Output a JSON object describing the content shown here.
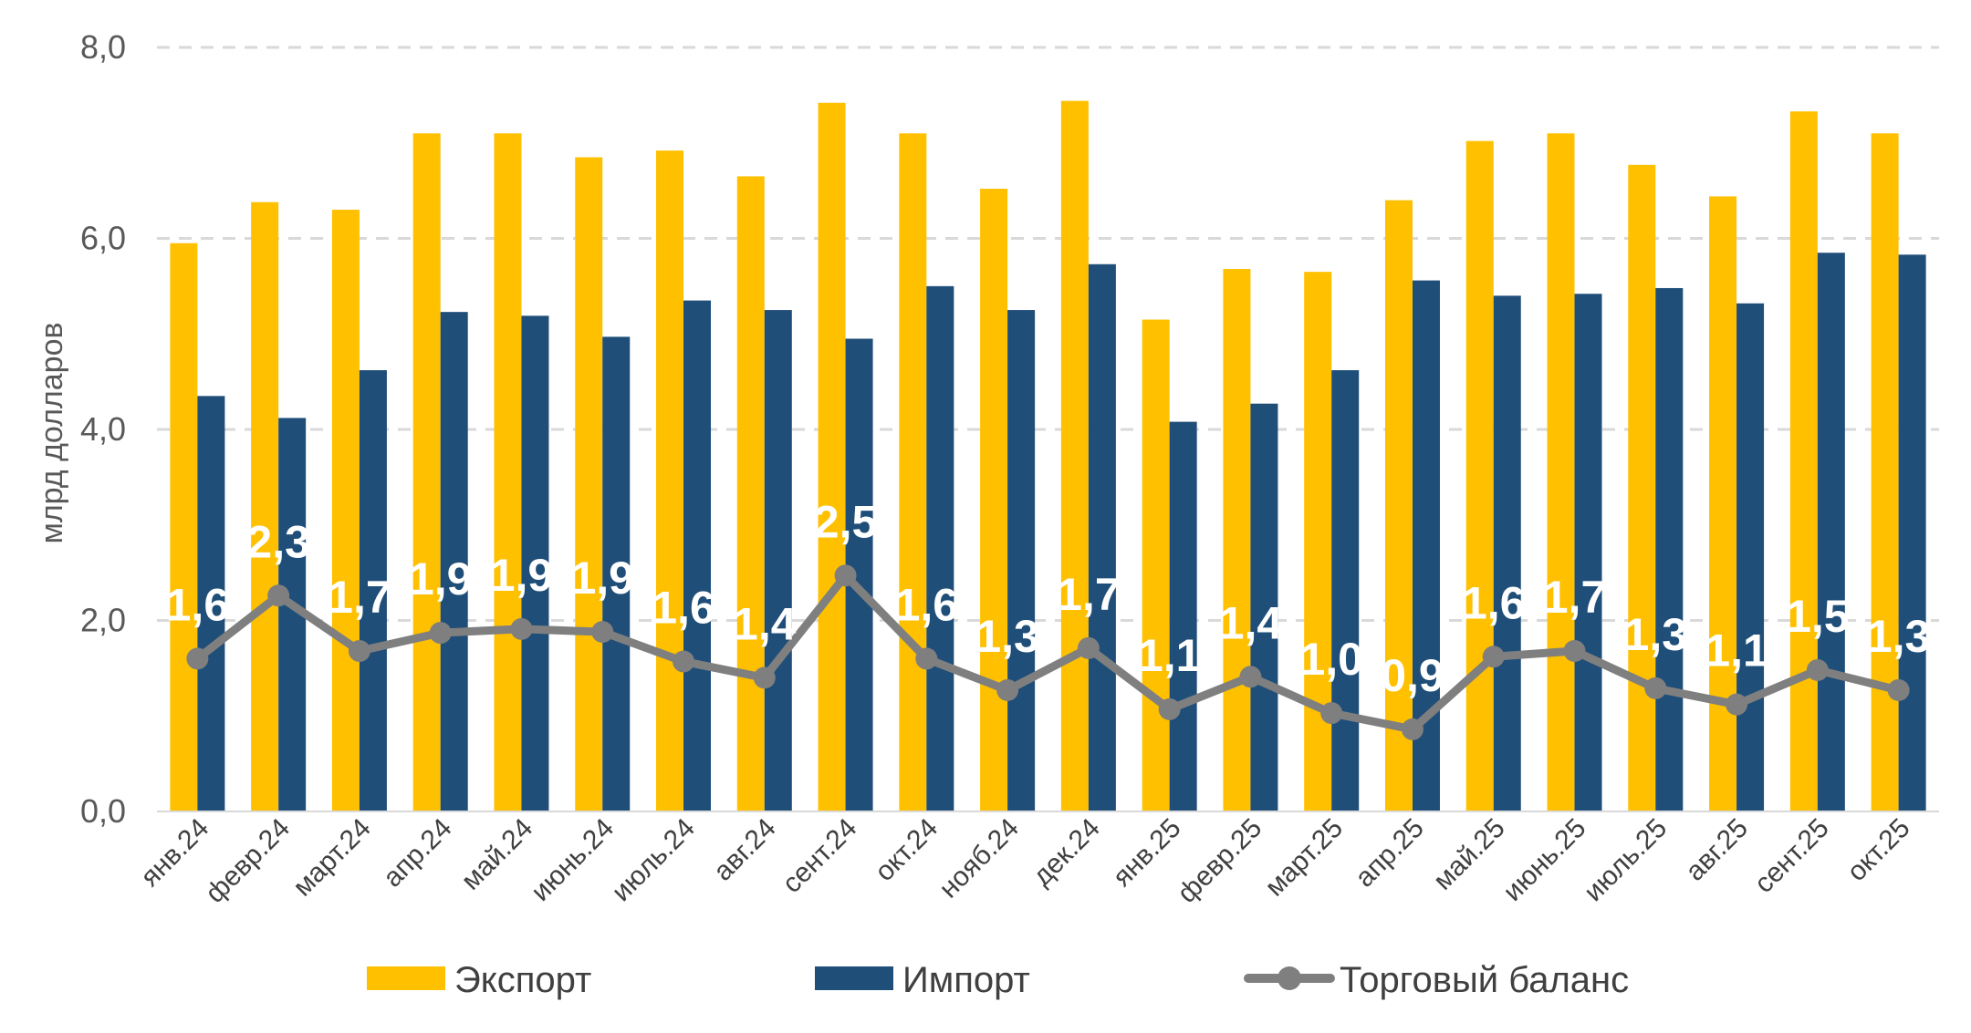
{
  "chart_data": {
    "type": "bar",
    "title": "",
    "xlabel": "",
    "ylabel": "млрд долларов",
    "ylim": [
      0,
      8
    ],
    "y_ticks": [
      "0,0",
      "2,0",
      "4,0",
      "6,0",
      "8,0"
    ],
    "grid": true,
    "legend_position": "bottom",
    "categories": [
      "янв.24",
      "февр.24",
      "март.24",
      "апр.24",
      "май.24",
      "июнь.24",
      "июль.24",
      "авг.24",
      "сент.24",
      "окт.24",
      "нояб.24",
      "дек.24",
      "янв.25",
      "февр.25",
      "март.25",
      "апр.25",
      "май.25",
      "июнь.25",
      "июль.25",
      "авг.25",
      "сент.25",
      "окт.25"
    ],
    "series": [
      {
        "name": "Экспорт",
        "type": "bar",
        "color": "#FFC000",
        "values": [
          5.95,
          6.38,
          6.3,
          7.1,
          7.1,
          6.85,
          6.92,
          6.65,
          7.42,
          7.1,
          6.52,
          7.44,
          5.15,
          5.68,
          5.65,
          6.4,
          7.02,
          7.1,
          6.77,
          6.44,
          7.33,
          7.1
        ]
      },
      {
        "name": "Импорт",
        "type": "bar",
        "color": "#1F4E79",
        "values": [
          4.35,
          4.12,
          4.62,
          5.23,
          5.19,
          4.97,
          5.35,
          5.25,
          4.95,
          5.5,
          5.25,
          5.73,
          4.08,
          4.27,
          4.62,
          5.56,
          5.4,
          5.42,
          5.48,
          5.32,
          5.85,
          5.83
        ]
      },
      {
        "name": "Торговый баланс",
        "type": "line",
        "color": "#7F7F7F",
        "values": [
          1.6,
          2.26,
          1.68,
          1.87,
          1.91,
          1.88,
          1.57,
          1.4,
          2.47,
          1.6,
          1.27,
          1.71,
          1.07,
          1.41,
          1.03,
          0.86,
          1.62,
          1.68,
          1.29,
          1.12,
          1.48,
          1.27
        ],
        "labels": [
          "1,6",
          "2,3",
          "1,7",
          "1,9",
          "1,9",
          "1,9",
          "1,6",
          "1,4",
          "2,5",
          "1,6",
          "1,3",
          "1,7",
          "1,1",
          "1,4",
          "1,0",
          "0,9",
          "1,6",
          "1,7",
          "1,3",
          "1,1",
          "1,5",
          "1,3"
        ]
      }
    ]
  }
}
